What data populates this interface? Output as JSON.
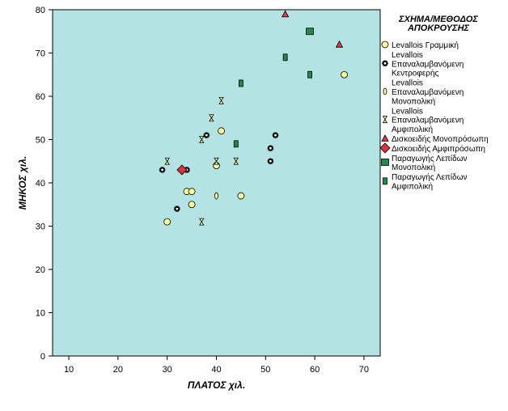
{
  "chart_data": {
    "type": "scatter",
    "xlabel": "ΠΛΑΤΟΣ χιλ.",
    "ylabel": "ΜΗΚΟΣ χιλ.",
    "xlim": [
      6.7,
      73.3
    ],
    "ylim": [
      0,
      80
    ],
    "xticks": [
      10,
      20,
      30,
      40,
      50,
      60,
      70
    ],
    "yticks": [
      0,
      10,
      20,
      30,
      40,
      50,
      60,
      70,
      80
    ],
    "grid": false,
    "background_color": "#b3e3e3",
    "legend_title": [
      "ΣΧΗΜΑ/ΜΕΘΟΔΟΣ",
      "ΑΠΟΚΡΟΥΣΗΣ"
    ],
    "legend_position": "right",
    "series": [
      {
        "name": [
          "Levallois Γραμμική"
        ],
        "marker": "circle",
        "color": "#ffff99",
        "points": [
          [
            30,
            31
          ],
          [
            34,
            38
          ],
          [
            35,
            38
          ],
          [
            35,
            35
          ],
          [
            40,
            44
          ],
          [
            41,
            52
          ],
          [
            45,
            37
          ],
          [
            66,
            65
          ]
        ]
      },
      {
        "name": [
          "Levallois",
          "Επαναλαμβανόμενη",
          "Κεντροφερής"
        ],
        "marker": "asterisk",
        "color": "#000000",
        "points": [
          [
            29,
            43
          ],
          [
            32,
            34
          ],
          [
            34,
            43
          ],
          [
            38,
            51
          ],
          [
            51,
            48
          ],
          [
            51,
            45
          ],
          [
            52,
            51
          ]
        ]
      },
      {
        "name": [
          "Levallois",
          "Επαναλαμβανόμενη",
          "Μονοπολική"
        ],
        "marker": "ellipse",
        "color": "#ffff99",
        "points": [
          [
            40,
            37
          ]
        ]
      },
      {
        "name": [
          "Levallois",
          "Επαναλαμβανόμενη",
          "Αμφιπολική"
        ],
        "marker": "hourglass",
        "color": "#ffff99",
        "points": [
          [
            30,
            45
          ],
          [
            37,
            31
          ],
          [
            37,
            50
          ],
          [
            39,
            55
          ],
          [
            40,
            45
          ],
          [
            41,
            59
          ],
          [
            44,
            45
          ]
        ]
      },
      {
        "name": [
          "Δισκοειδής Μονοπρόσωπη"
        ],
        "marker": "triangle",
        "color": "#e03a4a",
        "points": [
          [
            54,
            79
          ],
          [
            65,
            72
          ]
        ]
      },
      {
        "name": [
          "Δισκοειδής Αμφιπρόσωπη"
        ],
        "marker": "diamond",
        "color": "#d9333f",
        "points": [
          [
            33,
            43
          ]
        ]
      },
      {
        "name": [
          "Παραγωγής Λεπίδων",
          "Μονοπολική"
        ],
        "marker": "square",
        "color": "#1f8a4c",
        "points": [
          [
            59,
            75
          ]
        ]
      },
      {
        "name": [
          "Παραγωγής Λεπίδων",
          "Αμφιπολική"
        ],
        "marker": "rect",
        "color": "#1f8a4c",
        "points": [
          [
            45,
            63
          ],
          [
            44,
            49
          ],
          [
            54,
            69
          ],
          [
            59,
            65
          ]
        ]
      }
    ]
  }
}
